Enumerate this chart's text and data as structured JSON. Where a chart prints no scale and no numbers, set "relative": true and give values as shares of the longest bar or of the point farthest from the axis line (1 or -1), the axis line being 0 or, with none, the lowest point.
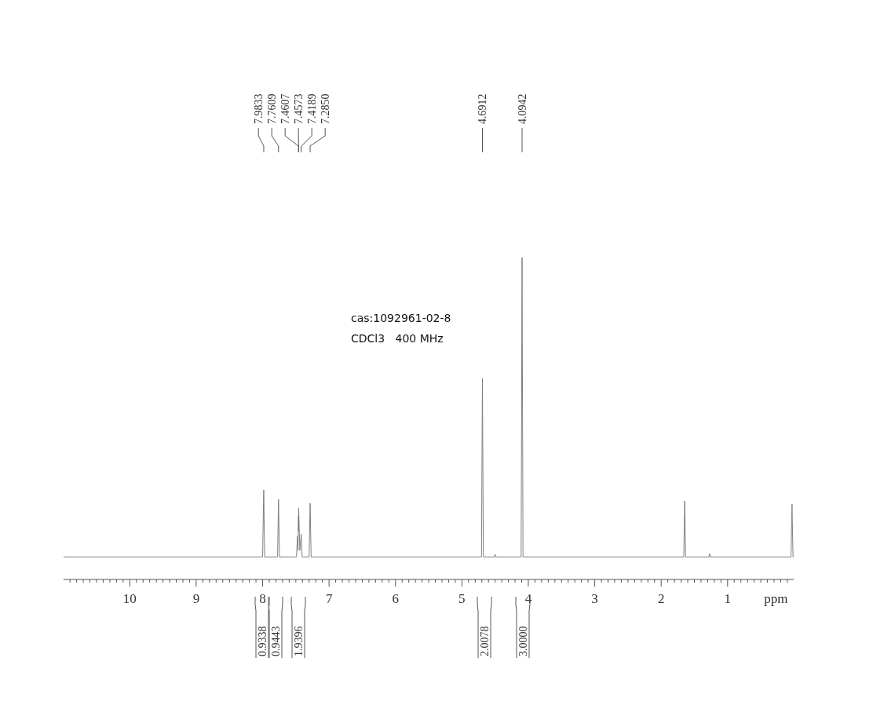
{
  "chart_data": {
    "type": "line",
    "relative": true,
    "xlabel": "ppm",
    "xlim": [
      11,
      0
    ],
    "xticks": [
      {
        "value": 10.9,
        "label": null
      },
      {
        "value": 10.8,
        "label": null
      },
      {
        "value": 10.7,
        "label": null
      },
      {
        "value": 10.6,
        "label": null
      },
      {
        "value": 10.5,
        "label": null
      },
      {
        "value": 10.4,
        "label": null
      },
      {
        "value": 10.3,
        "label": null
      },
      {
        "value": 10.2,
        "label": null
      },
      {
        "value": 10.1,
        "label": null
      },
      10,
      {
        "value": 9.9,
        "label": null
      },
      {
        "value": 9.8,
        "label": null
      },
      {
        "value": 9.7,
        "label": null
      },
      {
        "value": 9.6,
        "label": null
      },
      {
        "value": 9.5,
        "label": null
      },
      {
        "value": 9.4,
        "label": null
      },
      {
        "value": 9.3,
        "label": null
      },
      {
        "value": 9.2,
        "label": null
      },
      {
        "value": 9.1,
        "label": null
      },
      9,
      {
        "value": 8.9,
        "label": null
      },
      {
        "value": 8.8,
        "label": null
      },
      {
        "value": 8.7,
        "label": null
      },
      {
        "value": 8.6,
        "label": null
      },
      {
        "value": 8.5,
        "label": null
      },
      {
        "value": 8.4,
        "label": null
      },
      {
        "value": 8.3,
        "label": null
      },
      {
        "value": 8.2,
        "label": null
      },
      {
        "value": 8.1,
        "label": null
      },
      8,
      {
        "value": 7.9,
        "label": null
      },
      {
        "value": 7.8,
        "label": null
      },
      {
        "value": 7.7,
        "label": null
      },
      {
        "value": 7.6,
        "label": null
      },
      {
        "value": 7.5,
        "label": null
      },
      {
        "value": 7.4,
        "label": null
      },
      {
        "value": 7.3,
        "label": null
      },
      {
        "value": 7.2,
        "label": null
      },
      {
        "value": 7.1,
        "label": null
      },
      7,
      {
        "value": 6.9,
        "label": null
      },
      {
        "value": 6.8,
        "label": null
      },
      {
        "value": 6.7,
        "label": null
      },
      {
        "value": 6.6,
        "label": null
      },
      {
        "value": 6.5,
        "label": null
      },
      {
        "value": 6.4,
        "label": null
      },
      {
        "value": 6.3,
        "label": null
      },
      {
        "value": 6.2,
        "label": null
      },
      {
        "value": 6.1,
        "label": null
      },
      6,
      {
        "value": 5.9,
        "label": null
      },
      {
        "value": 5.8,
        "label": null
      },
      {
        "value": 5.7,
        "label": null
      },
      {
        "value": 5.6,
        "label": null
      },
      {
        "value": 5.5,
        "label": null
      },
      {
        "value": 5.4,
        "label": null
      },
      {
        "value": 5.3,
        "label": null
      },
      {
        "value": 5.2,
        "label": null
      },
      {
        "value": 5.1,
        "label": null
      },
      5,
      {
        "value": 4.9,
        "label": null
      },
      {
        "value": 4.8,
        "label": null
      },
      {
        "value": 4.7,
        "label": null
      },
      {
        "value": 4.6,
        "label": null
      },
      {
        "value": 4.5,
        "label": null
      },
      {
        "value": 4.4,
        "label": null
      },
      {
        "value": 4.3,
        "label": null
      },
      {
        "value": 4.2,
        "label": null
      },
      {
        "value": 4.1,
        "label": null
      },
      4,
      {
        "value": 3.9,
        "label": null
      },
      {
        "value": 3.8,
        "label": null
      },
      {
        "value": 3.7,
        "label": null
      },
      {
        "value": 3.6,
        "label": null
      },
      {
        "value": 3.5,
        "label": null
      },
      {
        "value": 3.4,
        "label": null
      },
      {
        "value": 3.3,
        "label": null
      },
      {
        "value": 3.2,
        "label": null
      },
      {
        "value": 3.1,
        "label": null
      },
      3,
      {
        "value": 2.9,
        "label": null
      },
      {
        "value": 2.8,
        "label": null
      },
      {
        "value": 2.7,
        "label": null
      },
      {
        "value": 2.6,
        "label": null
      },
      {
        "value": 2.5,
        "label": null
      },
      {
        "value": 2.4,
        "label": null
      },
      {
        "value": 2.3,
        "label": null
      },
      {
        "value": 2.2,
        "label": null
      },
      {
        "value": 2.1,
        "label": null
      },
      2,
      {
        "value": 1.9,
        "label": null
      },
      {
        "value": 1.8,
        "label": null
      },
      {
        "value": 1.7,
        "label": null
      },
      {
        "value": 1.6,
        "label": null
      },
      {
        "value": 1.5,
        "label": null
      },
      {
        "value": 1.4,
        "label": null
      },
      {
        "value": 1.3,
        "label": null
      },
      {
        "value": 1.2,
        "label": null
      },
      {
        "value": 1.1,
        "label": null
      },
      1,
      {
        "value": 0.9,
        "label": null
      },
      {
        "value": 0.8,
        "label": null
      },
      {
        "value": 0.7,
        "label": null
      },
      {
        "value": 0.6,
        "label": null
      },
      {
        "value": 0.5,
        "label": null
      },
      {
        "value": 0.4,
        "label": null
      },
      {
        "value": 0.3,
        "label": null
      },
      {
        "value": 0.2,
        "label": null
      },
      {
        "value": 0.1,
        "label": null
      }
    ],
    "x": [
      11,
      8.0,
      7.9833,
      7.97,
      7.775,
      7.7609,
      7.747,
      7.49,
      7.475,
      7.468,
      7.4607,
      7.459,
      7.4573,
      7.44,
      7.4189,
      7.405,
      7.3,
      7.285,
      7.27,
      4.705,
      4.6912,
      4.677,
      4.51,
      4.5,
      4.49,
      4.108,
      4.0942,
      4.08,
      1.66,
      1.646,
      1.632,
      1.28,
      1.27,
      1.26,
      0.045,
      0.03,
      0.015,
      0
    ],
    "series": [
      {
        "color": "#7f7f7f",
        "values": [
          0.07,
          0.07,
          0.278,
          0.07,
          0.07,
          0.249,
          0.07,
          0.07,
          0.134,
          0.09,
          0.198,
          0.15,
          0.222,
          0.09,
          0.141,
          0.07,
          0.07,
          0.237,
          0.07,
          0.07,
          0.624,
          0.07,
          0.07,
          0.078,
          0.07,
          0.07,
          1.0,
          0.07,
          0.07,
          0.244,
          0.07,
          0.07,
          0.08,
          0.07,
          0.07,
          0.234,
          0.07,
          0.07
        ]
      }
    ],
    "annotations": [
      {
        "text": "7.9833",
        "x": 7.9833
      },
      {
        "text": "7.7609",
        "x": 7.7609
      },
      {
        "text": "7.4607",
        "x": 7.4607
      },
      {
        "text": "7.4573",
        "x": 7.4573
      },
      {
        "text": "7.4189",
        "x": 7.4189
      },
      {
        "text": "7.2850",
        "x": 7.285
      },
      {
        "text": "4.6912",
        "x": 4.6912
      },
      {
        "text": "4.0942",
        "x": 4.0942
      },
      "0.9338",
      "0.9443",
      "1.9396",
      "2.0078",
      "3.0000",
      "cas:1092961-02-8",
      "CDCl3   400 MHz"
    ],
    "marker": "none",
    "line_style": "solid"
  }
}
